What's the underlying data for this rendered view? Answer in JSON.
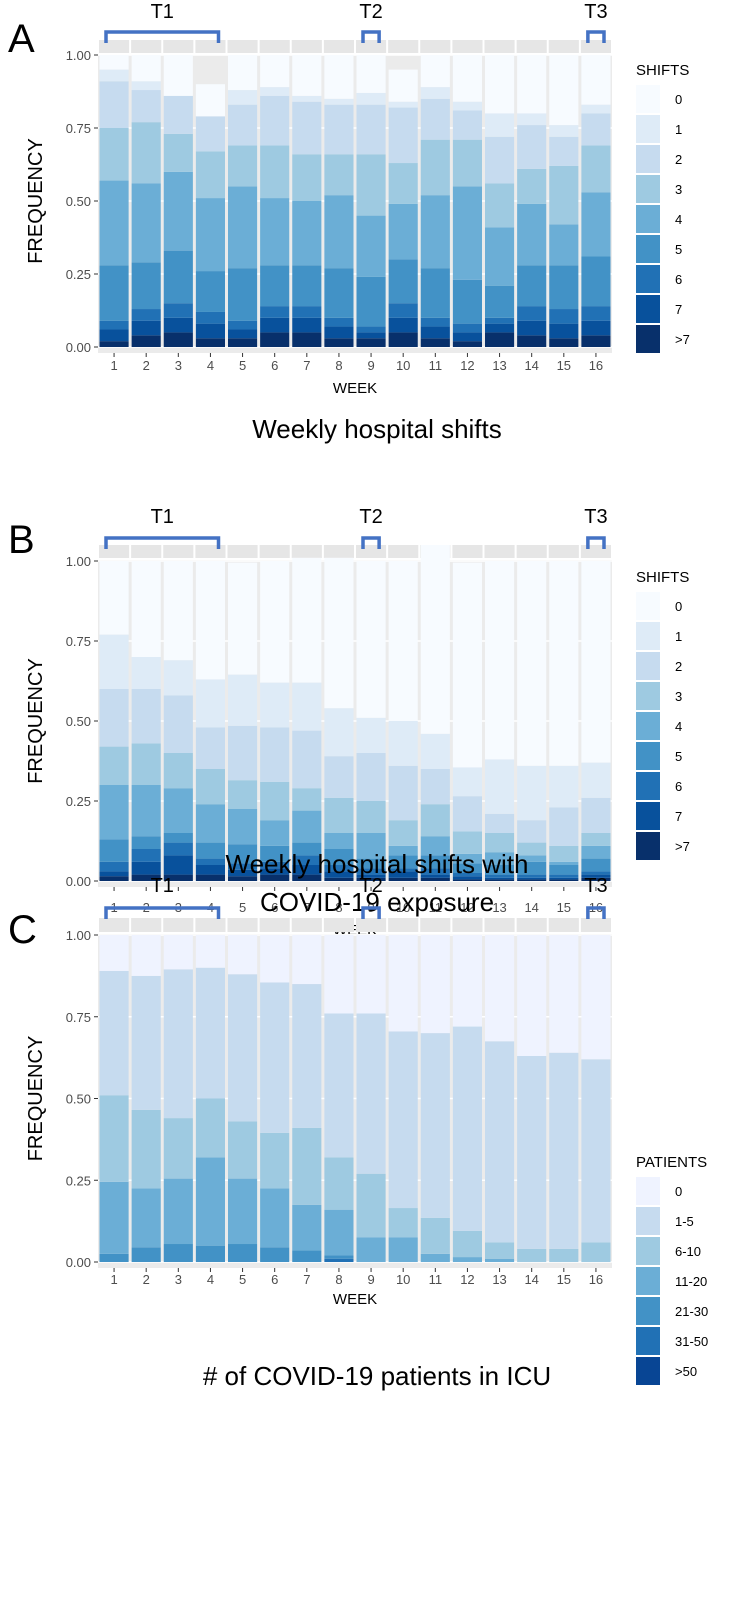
{
  "figure": {
    "panels": [
      {
        "label": "A",
        "caption": "Weekly hospital shifts",
        "brackets": [
          "T1",
          "T2",
          "T3"
        ]
      },
      {
        "label": "B",
        "caption_lines": [
          "Weekly hospital shifts with",
          "COVID-19 exposure"
        ],
        "brackets": [
          "T1",
          "T2",
          "T3"
        ]
      },
      {
        "label": "C",
        "caption": "# of COVID-19 patients in ICU",
        "brackets": [
          "T1",
          "T2",
          "T3"
        ]
      }
    ]
  },
  "chart_data": [
    {
      "type": "bar",
      "stacked": true,
      "title": "Weekly hospital shifts",
      "xlabel": "WEEK",
      "ylabel": "FREQUENCY",
      "ylim": [
        0,
        1
      ],
      "yticks": [
        "0.00",
        "0.25",
        "0.50",
        "0.75",
        "1.00"
      ],
      "categories": [
        "1",
        "2",
        "3",
        "4",
        "5",
        "6",
        "7",
        "8",
        "9",
        "10",
        "11",
        "12",
        "13",
        "14",
        "15",
        "16"
      ],
      "legend_title": "SHIFTS",
      "colors": [
        "#f7fbff",
        "#deebf7",
        "#c6dbef",
        "#9ecae1",
        "#6baed6",
        "#4292c6",
        "#2171b5",
        "#08519c",
        "#08306b"
      ],
      "series": [
        {
          "name": ">7",
          "values": [
            0.02,
            0.04,
            0.05,
            0.03,
            0.03,
            0.05,
            0.05,
            0.03,
            0.03,
            0.05,
            0.03,
            0.02,
            0.05,
            0.04,
            0.03,
            0.04
          ]
        },
        {
          "name": "7",
          "values": [
            0.04,
            0.05,
            0.05,
            0.05,
            0.03,
            0.05,
            0.05,
            0.04,
            0.02,
            0.05,
            0.04,
            0.03,
            0.03,
            0.05,
            0.05,
            0.05
          ]
        },
        {
          "name": "6",
          "values": [
            0.03,
            0.04,
            0.05,
            0.04,
            0.03,
            0.04,
            0.04,
            0.03,
            0.02,
            0.05,
            0.03,
            0.03,
            0.02,
            0.05,
            0.05,
            0.05
          ]
        },
        {
          "name": "5",
          "values": [
            0.19,
            0.16,
            0.18,
            0.14,
            0.18,
            0.14,
            0.14,
            0.17,
            0.17,
            0.15,
            0.17,
            0.15,
            0.11,
            0.14,
            0.15,
            0.17
          ]
        },
        {
          "name": "4",
          "values": [
            0.29,
            0.27,
            0.27,
            0.25,
            0.28,
            0.23,
            0.22,
            0.25,
            0.21,
            0.19,
            0.25,
            0.32,
            0.2,
            0.21,
            0.14,
            0.22
          ]
        },
        {
          "name": "3",
          "values": [
            0.18,
            0.21,
            0.13,
            0.16,
            0.14,
            0.18,
            0.16,
            0.14,
            0.21,
            0.14,
            0.19,
            0.16,
            0.15,
            0.12,
            0.2,
            0.16
          ]
        },
        {
          "name": "2",
          "values": [
            0.16,
            0.11,
            0.13,
            0.12,
            0.14,
            0.17,
            0.18,
            0.17,
            0.17,
            0.19,
            0.14,
            0.1,
            0.16,
            0.15,
            0.1,
            0.11
          ]
        },
        {
          "name": "1",
          "values": [
            0.04,
            0.03,
            0.0,
            0.0,
            0.05,
            0.03,
            0.02,
            0.02,
            0.04,
            0.02,
            0.04,
            0.03,
            0.08,
            0.04,
            0.04,
            0.03
          ]
        },
        {
          "name": "0",
          "values": [
            0.05,
            0.09,
            0.14,
            0.11,
            0.12,
            0.11,
            0.14,
            0.15,
            0.13,
            0.11,
            0.11,
            0.16,
            0.2,
            0.2,
            0.24,
            0.17
          ]
        }
      ]
    },
    {
      "type": "bar",
      "stacked": true,
      "title": "Weekly hospital shifts with COVID-19 exposure",
      "xlabel": "WEEK",
      "ylabel": "FREQUENCY",
      "ylim": [
        0,
        1
      ],
      "yticks": [
        "0.00",
        "0.25",
        "0.50",
        "0.75",
        "1.00"
      ],
      "categories": [
        "1",
        "2",
        "3",
        "4",
        "5",
        "6",
        "7",
        "8",
        "9",
        "10",
        "11",
        "12",
        "13",
        "14",
        "15",
        "16"
      ],
      "legend_title": "SHIFTS",
      "colors": [
        "#f7fbff",
        "#deebf7",
        "#c6dbef",
        "#9ecae1",
        "#6baed6",
        "#4292c6",
        "#2171b5",
        "#08519c",
        "#08306b"
      ],
      "series": [
        {
          "name": ">7",
          "values": [
            0.015,
            0.02,
            0.02,
            0.02,
            0.015,
            0.02,
            0.02,
            0.01,
            0.01,
            0.01,
            0.01,
            0.005,
            0.005,
            0.005,
            0.005,
            0.01
          ]
        },
        {
          "name": "7",
          "values": [
            0.015,
            0.04,
            0.06,
            0.03,
            0.02,
            0.02,
            0.03,
            0.02,
            0.01,
            0.02,
            0.01,
            0.01,
            0.005,
            0.005,
            0.005,
            0.01
          ]
        },
        {
          "name": "6",
          "values": [
            0.03,
            0.04,
            0.04,
            0.02,
            0.02,
            0.02,
            0.03,
            0.02,
            0.02,
            0.01,
            0.02,
            0.01,
            0.01,
            0.01,
            0.01,
            0.01
          ]
        },
        {
          "name": "5",
          "values": [
            0.07,
            0.04,
            0.03,
            0.05,
            0.06,
            0.05,
            0.04,
            0.05,
            0.03,
            0.04,
            0.04,
            0.03,
            0.03,
            0.04,
            0.03,
            0.04
          ]
        },
        {
          "name": "4",
          "values": [
            0.17,
            0.16,
            0.14,
            0.12,
            0.11,
            0.08,
            0.1,
            0.05,
            0.08,
            0.03,
            0.06,
            0.03,
            0.04,
            0.02,
            0.01,
            0.04
          ]
        },
        {
          "name": "3",
          "values": [
            0.12,
            0.13,
            0.11,
            0.11,
            0.09,
            0.12,
            0.07,
            0.11,
            0.1,
            0.08,
            0.1,
            0.07,
            0.06,
            0.04,
            0.05,
            0.04
          ]
        },
        {
          "name": "2",
          "values": [
            0.18,
            0.17,
            0.18,
            0.13,
            0.17,
            0.17,
            0.18,
            0.13,
            0.15,
            0.17,
            0.11,
            0.11,
            0.06,
            0.07,
            0.12,
            0.11
          ]
        },
        {
          "name": "1",
          "values": [
            0.17,
            0.1,
            0.11,
            0.15,
            0.16,
            0.14,
            0.15,
            0.15,
            0.11,
            0.14,
            0.11,
            0.09,
            0.17,
            0.17,
            0.13,
            0.11
          ]
        },
        {
          "name": "0",
          "values": [
            0.23,
            0.3,
            0.31,
            0.37,
            0.35,
            0.38,
            0.39,
            0.47,
            0.49,
            0.5,
            0.59,
            0.64,
            0.62,
            0.64,
            0.64,
            0.63
          ]
        }
      ]
    },
    {
      "type": "bar",
      "stacked": true,
      "title": "# of COVID-19 patients in ICU",
      "xlabel": "WEEK",
      "ylabel": "FREQUENCY",
      "ylim": [
        0,
        1
      ],
      "yticks": [
        "0.00",
        "0.25",
        "0.50",
        "0.75",
        "1.00"
      ],
      "categories": [
        "1",
        "2",
        "3",
        "4",
        "5",
        "6",
        "7",
        "8",
        "9",
        "10",
        "11",
        "12",
        "13",
        "14",
        "15",
        "16"
      ],
      "legend_title": "PATIENTS",
      "colors": [
        "#eff3ff",
        "#c6dbef",
        "#9ecae1",
        "#6baed6",
        "#4292c6",
        "#2171b5",
        "#084594"
      ],
      "series": [
        {
          "name": ">50",
          "values": [
            0,
            0,
            0,
            0,
            0,
            0,
            0,
            0,
            0,
            0,
            0,
            0,
            0,
            0,
            0,
            0
          ]
        },
        {
          "name": "31-50",
          "values": [
            0,
            0,
            0,
            0,
            0,
            0,
            0,
            0.01,
            0,
            0,
            0,
            0,
            0,
            0,
            0,
            0
          ]
        },
        {
          "name": "21-30",
          "values": [
            0.025,
            0.045,
            0.055,
            0.05,
            0.055,
            0.045,
            0.035,
            0.01,
            0,
            0,
            0,
            0,
            0,
            0,
            0,
            0
          ]
        },
        {
          "name": "11-20",
          "values": [
            0.22,
            0.18,
            0.2,
            0.27,
            0.2,
            0.18,
            0.14,
            0.14,
            0.075,
            0.075,
            0.025,
            0.015,
            0.01,
            0,
            0,
            0
          ]
        },
        {
          "name": "6-10",
          "values": [
            0.265,
            0.24,
            0.185,
            0.18,
            0.175,
            0.17,
            0.235,
            0.16,
            0.195,
            0.09,
            0.11,
            0.08,
            0.05,
            0.04,
            0.04,
            0.06
          ]
        },
        {
          "name": "1-5",
          "values": [
            0.38,
            0.41,
            0.455,
            0.4,
            0.45,
            0.46,
            0.44,
            0.44,
            0.49,
            0.54,
            0.565,
            0.625,
            0.615,
            0.59,
            0.6,
            0.56
          ]
        },
        {
          "name": "0",
          "values": [
            0.11,
            0.125,
            0.105,
            0.1,
            0.12,
            0.145,
            0.15,
            0.24,
            0.24,
            0.295,
            0.3,
            0.28,
            0.325,
            0.37,
            0.36,
            0.38
          ]
        }
      ]
    }
  ]
}
